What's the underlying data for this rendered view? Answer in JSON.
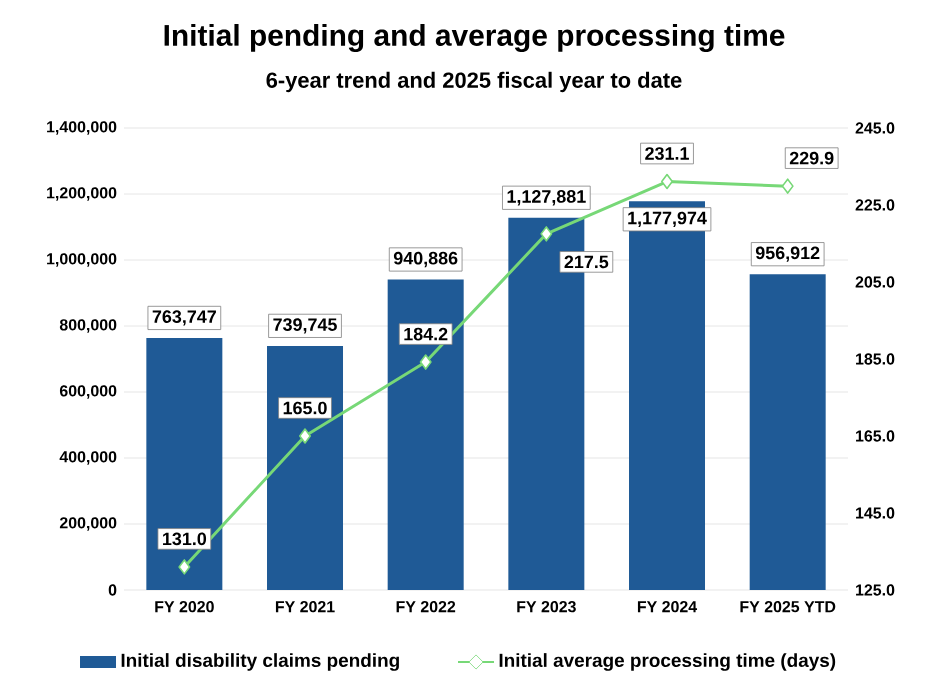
{
  "chart_data": {
    "type": "bar",
    "title": "Initial pending and average processing time",
    "subtitle": "6-year trend and 2025 fiscal year to date",
    "categories": [
      "FY 2020",
      "FY 2021",
      "FY 2022",
      "FY 2023",
      "FY 2024",
      "FY 2025 YTD"
    ],
    "series": [
      {
        "name": "Initial disability claims pending",
        "color": "#1f5a96",
        "values": [
          763747,
          739745,
          940886,
          1127881,
          1177974,
          956912
        ],
        "value_labels": [
          "763,747",
          "739,745",
          "940,886",
          "1,127,881",
          "1,177,974",
          "956,912"
        ]
      },
      {
        "name": "Initial average processing time (days)",
        "type": "line",
        "axis": "y2",
        "color": "#77d877",
        "marker": "diamond",
        "values": [
          131.0,
          165.0,
          184.2,
          217.5,
          231.1,
          229.9
        ],
        "value_labels": [
          "131.0",
          "165.0",
          "184.2",
          "217.5",
          "231.1",
          "229.9"
        ]
      }
    ],
    "ylim": [
      0,
      1400000
    ],
    "yticks": [
      {
        "value": 0,
        "label": "0"
      },
      {
        "value": 200000,
        "label": "200,000"
      },
      {
        "value": 400000,
        "label": "400,000"
      },
      {
        "value": 600000,
        "label": "600,000"
      },
      {
        "value": 800000,
        "label": "800,000"
      },
      {
        "value": 1000000,
        "label": "1,000,000"
      },
      {
        "value": 1200000,
        "label": "1,200,000"
      },
      {
        "value": 1400000,
        "label": "1,400,000"
      }
    ],
    "y2lim": [
      125,
      245
    ],
    "y2ticks": [
      {
        "value": 125,
        "label": "125.0"
      },
      {
        "value": 145,
        "label": "145.0"
      },
      {
        "value": 165,
        "label": "165.0"
      },
      {
        "value": 185,
        "label": "185.0"
      },
      {
        "value": 205,
        "label": "205.0"
      },
      {
        "value": 225,
        "label": "225.0"
      },
      {
        "value": 245,
        "label": "245.0"
      }
    ],
    "grid": "y",
    "legend": "bottom"
  }
}
